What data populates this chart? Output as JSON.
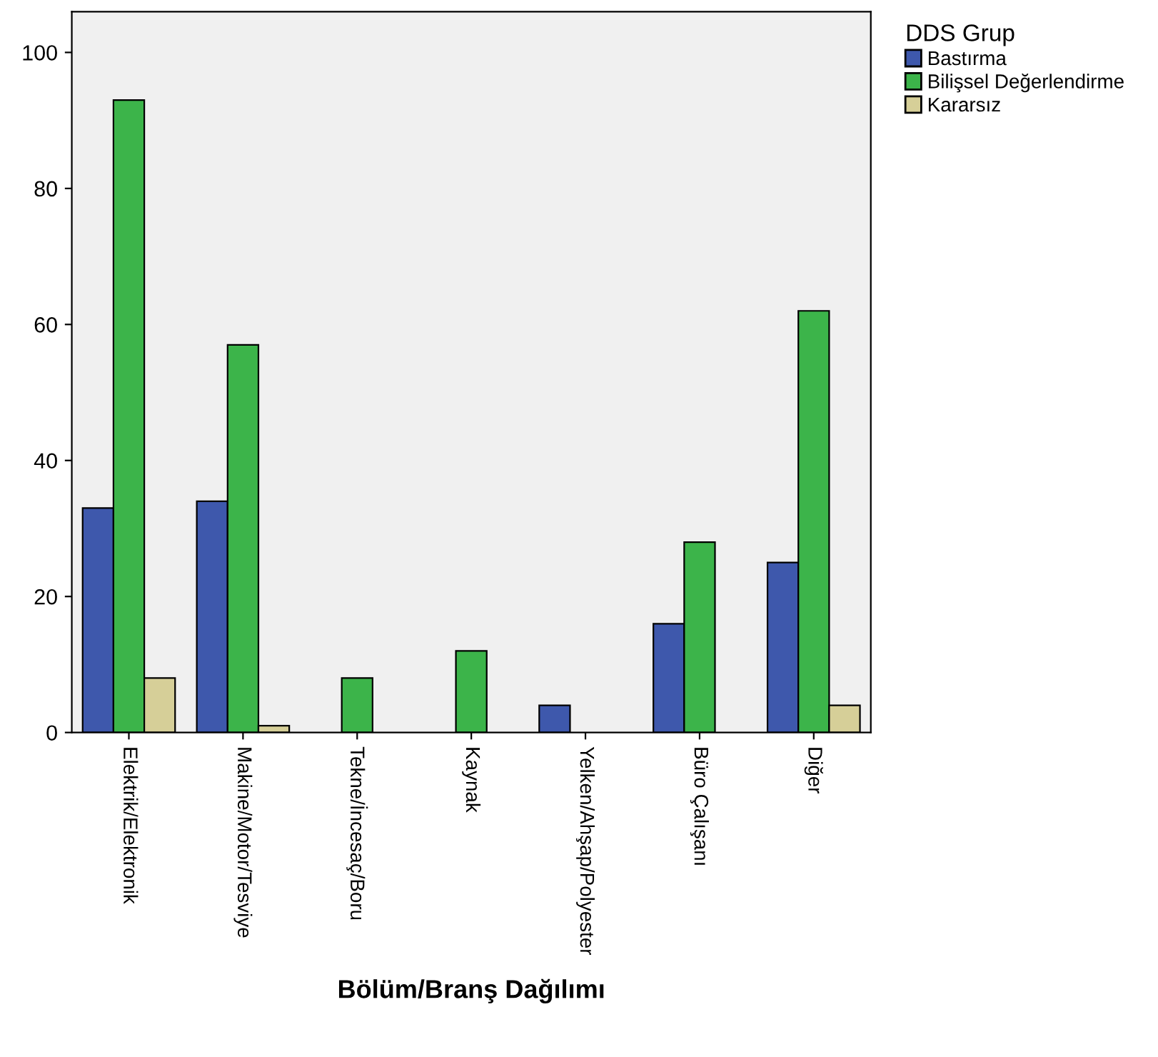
{
  "chart_data": {
    "type": "bar",
    "xlabel": "Bölüm/Branş Dağılımı",
    "legend_title": "DDS Grup",
    "legend": "right",
    "categories": [
      "Elektrik/Elektronik",
      "Makine/Motor/Tesviye",
      "Tekne/İncesaç/Boru",
      "Kaynak",
      "Yelken/Ahşap/Polyester",
      "Büro Çalışanı",
      "Diğer"
    ],
    "series": [
      {
        "name": "Bastırma",
        "color": "#3e58ac",
        "values": [
          33,
          34,
          null,
          null,
          4,
          16,
          25
        ]
      },
      {
        "name": "Bilişsel Değerlendirme",
        "color": "#3cb44a",
        "values": [
          93,
          57,
          8,
          12,
          null,
          28,
          62
        ]
      },
      {
        "name": "Kararsız",
        "color": "#d6cf98",
        "values": [
          8,
          1,
          null,
          null,
          null,
          null,
          4
        ]
      }
    ],
    "ylim": [
      0,
      106
    ],
    "yticks": [
      0,
      20,
      40,
      60,
      80,
      100
    ],
    "grid": false
  }
}
